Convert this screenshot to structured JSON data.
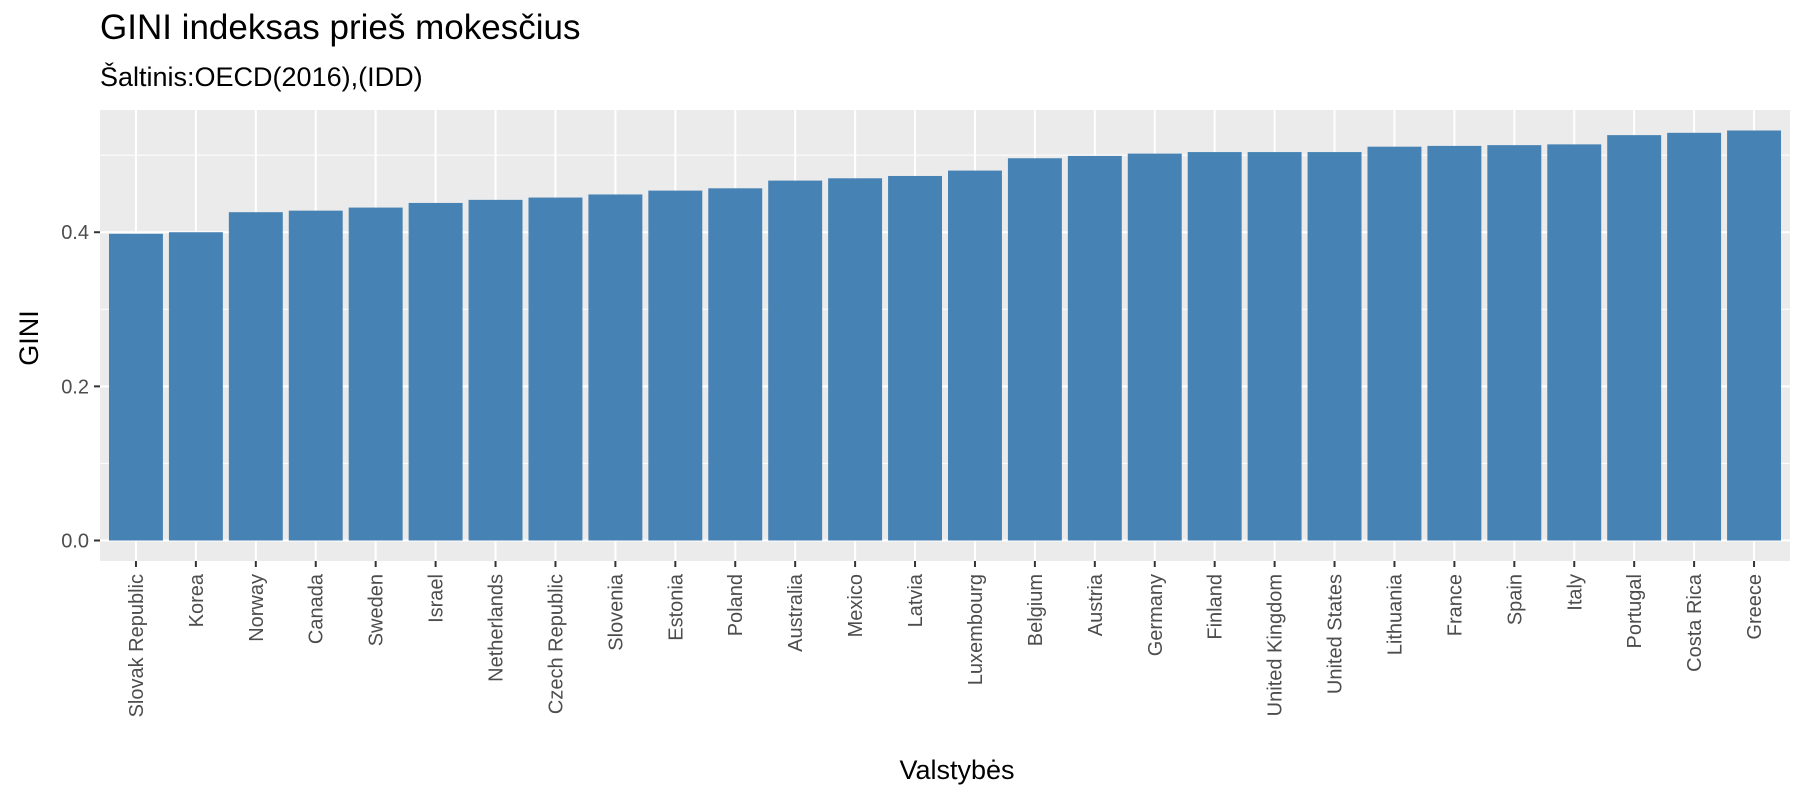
{
  "chart_data": {
    "type": "bar",
    "title": "GINI indeksas prieš mokesčius",
    "subtitle": "Šaltinis:OECD(2016),(IDD)",
    "xlabel": "Valstybės",
    "ylabel": "GINI",
    "categories": [
      "Slovak Republic",
      "Korea",
      "Norway",
      "Canada",
      "Sweden",
      "Israel",
      "Netherlands",
      "Czech Republic",
      "Slovenia",
      "Estonia",
      "Poland",
      "Australia",
      "Mexico",
      "Latvia",
      "Luxembourg",
      "Belgium",
      "Austria",
      "Germany",
      "Finland",
      "United Kingdom",
      "United States",
      "Lithuania",
      "France",
      "Spain",
      "Italy",
      "Portugal",
      "Costa Rica",
      "Greece"
    ],
    "values": [
      0.398,
      0.4,
      0.426,
      0.428,
      0.432,
      0.438,
      0.442,
      0.445,
      0.449,
      0.454,
      0.457,
      0.467,
      0.47,
      0.473,
      0.48,
      0.496,
      0.499,
      0.502,
      0.504,
      0.504,
      0.504,
      0.511,
      0.512,
      0.513,
      0.514,
      0.526,
      0.529,
      0.532
    ],
    "yticks": [
      "0.0",
      "0.2",
      "0.4"
    ],
    "ylim": [
      -0.0266,
      0.5586
    ],
    "grid": true,
    "colors": {
      "bar": "#4682b4",
      "panel": "#ebebeb",
      "grid": "#ffffff"
    }
  }
}
